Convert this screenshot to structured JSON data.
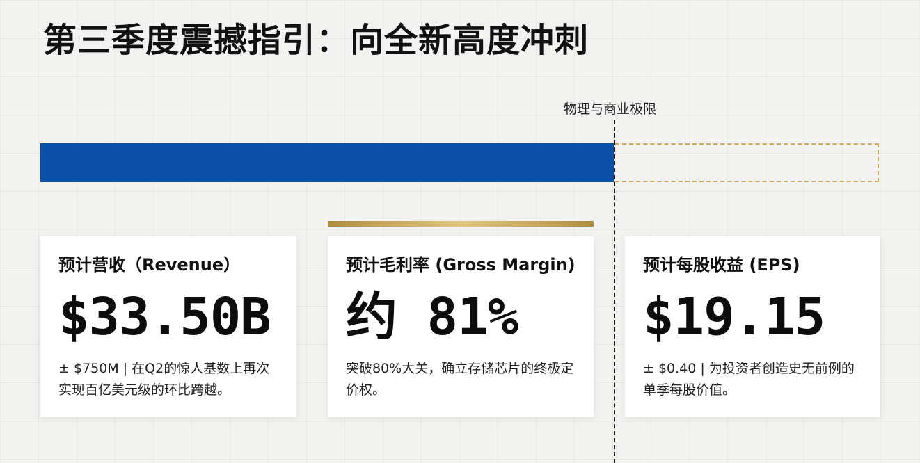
{
  "slide": {
    "title": "第三季度震撼指引：向全新高度冲刺"
  },
  "progress": {
    "limit_label": "物理与商业极限",
    "fill_fraction": 0.685,
    "colors": {
      "fill": "#0a4fa8",
      "remaining_border": "#c9a95c",
      "limit_line": "#111111"
    }
  },
  "cards": [
    {
      "label": "预计营收（Revenue）",
      "value": "$33.50B",
      "description": "± $750M | 在Q2的惊人基数上再次实现百亿美元级的环比跨越。"
    },
    {
      "label": "预计毛利率 (Gross Margin)",
      "value": "约 81%",
      "description": "突破80%大关，确立存储芯片的终极定价权。",
      "accent_color": "#c9a95c"
    },
    {
      "label": "预计每股收益 (EPS)",
      "value": "$19.15",
      "description": "± $0.40 | 为投资者创造史无前例的单季每股价值。"
    }
  ]
}
